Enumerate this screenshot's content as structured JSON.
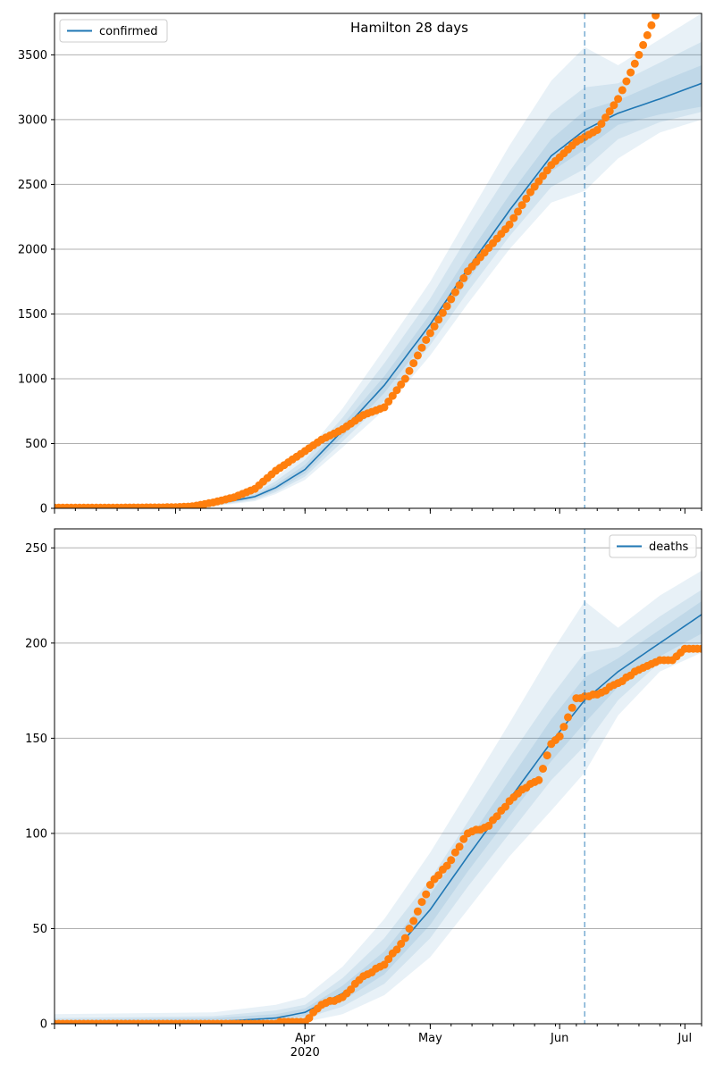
{
  "colors": {
    "model_line": "#1f77b4",
    "observed": "#ff7f0e",
    "band": "#1f77b4",
    "grid": "#b0b0b0",
    "vline": "#1f77b4"
  },
  "chart_data": [
    {
      "type": "line",
      "title": "Hamilton 28 days",
      "xlabel": "",
      "ylabel": "",
      "x_type": "date",
      "xlim": [
        "2020-02-01",
        "2020-07-05"
      ],
      "ylim": [
        0,
        3820
      ],
      "yticks": [
        0,
        500,
        1000,
        1500,
        2000,
        2500,
        3000,
        3500
      ],
      "grid": "horizontal",
      "legend": {
        "position": "top-left",
        "entries": [
          "confirmed"
        ]
      },
      "forecast_start": "2020-06-07",
      "series": [
        {
          "name": "confirmed",
          "kind": "model",
          "x": [
            "2020-02-01",
            "2020-03-01",
            "2020-03-10",
            "2020-03-20",
            "2020-03-25",
            "2020-04-01",
            "2020-04-10",
            "2020-04-20",
            "2020-05-01",
            "2020-05-10",
            "2020-05-20",
            "2020-05-30",
            "2020-06-07",
            "2020-06-15",
            "2020-06-25",
            "2020-07-05"
          ],
          "values": [
            0,
            8,
            30,
            90,
            160,
            300,
            600,
            950,
            1420,
            1850,
            2300,
            2720,
            2920,
            3050,
            3160,
            3280
          ],
          "bands": [
            {
              "lower": [
                0,
                0,
                15,
                55,
                110,
                220,
                470,
                760,
                1180,
                1580,
                2000,
                2360,
                2450,
                2700,
                2900,
                3000
              ],
              "upper": [
                0,
                20,
                55,
                140,
                240,
                420,
                770,
                1230,
                1750,
                2250,
                2800,
                3300,
                3560,
                3420,
                3620,
                3820
              ]
            },
            {
              "lower": [
                0,
                2,
                20,
                65,
                125,
                245,
                515,
                830,
                1260,
                1670,
                2100,
                2480,
                2620,
                2850,
                2980,
                3060
              ],
              "upper": [
                0,
                16,
                46,
                120,
                210,
                375,
                700,
                1120,
                1620,
                2100,
                2600,
                3050,
                3250,
                3280,
                3440,
                3600
              ]
            },
            {
              "lower": [
                0,
                4,
                24,
                75,
                140,
                268,
                555,
                890,
                1340,
                1760,
                2200,
                2600,
                2770,
                2960,
                3040,
                3100
              ],
              "upper": [
                0,
                12,
                38,
                105,
                185,
                335,
                645,
                1020,
                1500,
                1950,
                2420,
                2850,
                3070,
                3150,
                3290,
                3420
              ]
            }
          ]
        },
        {
          "name": "",
          "kind": "observed",
          "x": [
            "2020-02-01",
            "2020-02-15",
            "2020-03-01",
            "2020-03-05",
            "2020-03-10",
            "2020-03-15",
            "2020-03-20",
            "2020-03-25",
            "2020-03-31",
            "2020-04-05",
            "2020-04-10",
            "2020-04-15",
            "2020-04-20",
            "2020-04-25",
            "2020-04-30",
            "2020-05-05",
            "2020-05-10",
            "2020-05-15",
            "2020-05-20",
            "2020-05-25",
            "2020-05-30",
            "2020-06-05",
            "2020-06-10",
            "2020-06-15",
            "2020-06-20",
            "2020-06-25"
          ],
          "values": [
            5,
            5,
            8,
            15,
            45,
            85,
            150,
            290,
            420,
            530,
            610,
            720,
            780,
            1000,
            1300,
            1560,
            1830,
            2010,
            2190,
            2440,
            2650,
            2830,
            2920,
            3160,
            3500,
            3880
          ]
        }
      ]
    },
    {
      "type": "line",
      "title": "",
      "xlabel": "",
      "ylabel": "",
      "x_type": "date",
      "xlim": [
        "2020-02-01",
        "2020-07-05"
      ],
      "ylim": [
        0,
        260
      ],
      "yticks": [
        0,
        50,
        100,
        150,
        200,
        250
      ],
      "xtick_labels": [
        {
          "date": "2020-04-01",
          "label": "Apr",
          "sublabel": "2020"
        },
        {
          "date": "2020-05-01",
          "label": "May",
          "sublabel": ""
        },
        {
          "date": "2020-06-01",
          "label": "Jun",
          "sublabel": ""
        },
        {
          "date": "2020-07-01",
          "label": "Jul",
          "sublabel": ""
        }
      ],
      "grid": "horizontal",
      "legend": {
        "position": "top-right",
        "entries": [
          "deaths"
        ]
      },
      "forecast_start": "2020-06-07",
      "series": [
        {
          "name": "deaths",
          "kind": "model",
          "x": [
            "2020-02-01",
            "2020-03-10",
            "2020-03-25",
            "2020-04-01",
            "2020-04-10",
            "2020-04-20",
            "2020-05-01",
            "2020-05-10",
            "2020-05-20",
            "2020-05-30",
            "2020-06-07",
            "2020-06-15",
            "2020-06-25",
            "2020-07-05"
          ],
          "values": [
            0,
            1,
            3,
            6,
            16,
            32,
            60,
            88,
            118,
            148,
            170,
            185,
            200,
            215
          ],
          "bands": [
            {
              "lower": [
                0,
                0,
                0,
                1,
                5,
                15,
                35,
                60,
                88,
                112,
                132,
                162,
                185,
                195
              ],
              "upper": [
                5,
                6,
                10,
                14,
                30,
                55,
                90,
                122,
                158,
                195,
                222,
                208,
                225,
                238
              ]
            },
            {
              "lower": [
                0,
                0,
                1,
                3,
                9,
                21,
                45,
                72,
                100,
                128,
                146,
                170,
                190,
                200
              ],
              "upper": [
                3,
                4,
                7,
                10,
                24,
                45,
                76,
                106,
                140,
                172,
                195,
                198,
                214,
                228
              ]
            },
            {
              "lower": [
                0,
                0,
                2,
                4,
                12,
                26,
                52,
                80,
                109,
                138,
                158,
                177,
                193,
                205
              ],
              "upper": [
                2,
                3,
                5,
                8,
                20,
                38,
                68,
                96,
                128,
                160,
                182,
                192,
                207,
                222
              ]
            }
          ]
        },
        {
          "name": "",
          "kind": "observed",
          "x": [
            "2020-02-01",
            "2020-03-01",
            "2020-03-20",
            "2020-04-01",
            "2020-04-05",
            "2020-04-10",
            "2020-04-15",
            "2020-04-20",
            "2020-04-25",
            "2020-05-01",
            "2020-05-05",
            "2020-05-08",
            "2020-05-10",
            "2020-05-15",
            "2020-05-20",
            "2020-05-23",
            "2020-05-27",
            "2020-05-30",
            "2020-06-01",
            "2020-06-05",
            "2020-06-10",
            "2020-06-15",
            "2020-06-20",
            "2020-06-25",
            "2020-06-28",
            "2020-07-01",
            "2020-07-05"
          ],
          "values": [
            0,
            0,
            0,
            1,
            10,
            14,
            25,
            31,
            45,
            73,
            83,
            93,
            100,
            104,
            117,
            123,
            128,
            147,
            151,
            171,
            173,
            179,
            186,
            191,
            191,
            197,
            197
          ]
        }
      ]
    }
  ]
}
